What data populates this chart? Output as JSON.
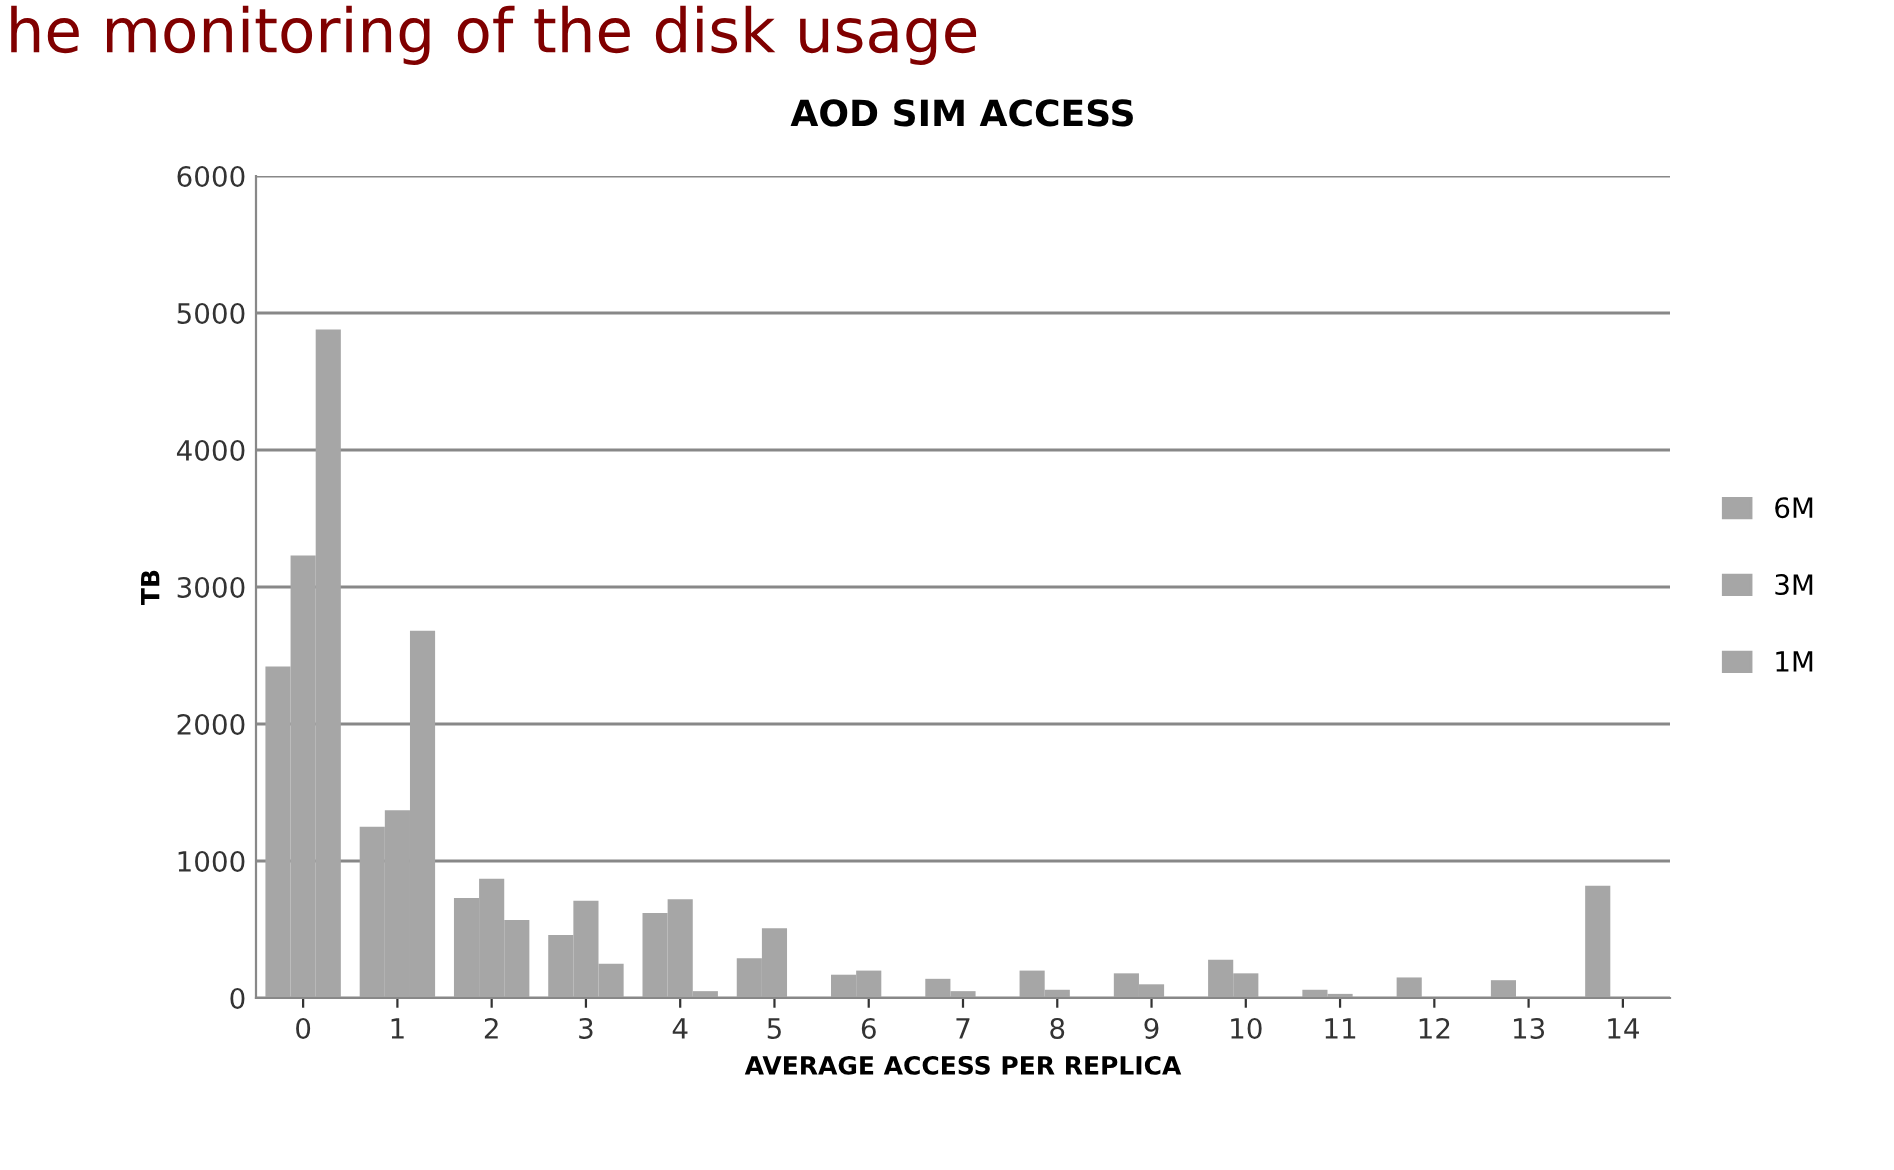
{
  "chart_data": {
    "type": "bar",
    "title": "AOD SIM ACCESS",
    "subtitle": "he monitoring of the disk usage",
    "xlabel": "AVERAGE ACCESS PER REPLICA",
    "ylabel": "TB",
    "categories": [
      "0",
      "1",
      "2",
      "3",
      "4",
      "5",
      "6",
      "7",
      "8",
      "9",
      "10",
      "11",
      "12",
      "13",
      "14"
    ],
    "series": [
      {
        "name": "6M",
        "color": "#a6a6a6",
        "values": [
          2420,
          1250,
          730,
          460,
          620,
          290,
          170,
          140,
          200,
          180,
          280,
          60,
          150,
          130,
          820
        ]
      },
      {
        "name": "3M",
        "color": "#a6a6a6",
        "values": [
          3230,
          1370,
          870,
          710,
          720,
          510,
          200,
          50,
          60,
          100,
          180,
          30,
          0,
          0,
          0
        ]
      },
      {
        "name": "1M",
        "color": "#a6a6a6",
        "values": [
          4880,
          2680,
          570,
          250,
          50,
          0,
          0,
          0,
          0,
          0,
          0,
          0,
          0,
          0,
          0
        ]
      }
    ],
    "ylim": [
      0,
      6000
    ],
    "yticks": [
      0,
      1000,
      2000,
      3000,
      4000,
      5000,
      6000
    ],
    "grid": "y",
    "legend": "right"
  }
}
